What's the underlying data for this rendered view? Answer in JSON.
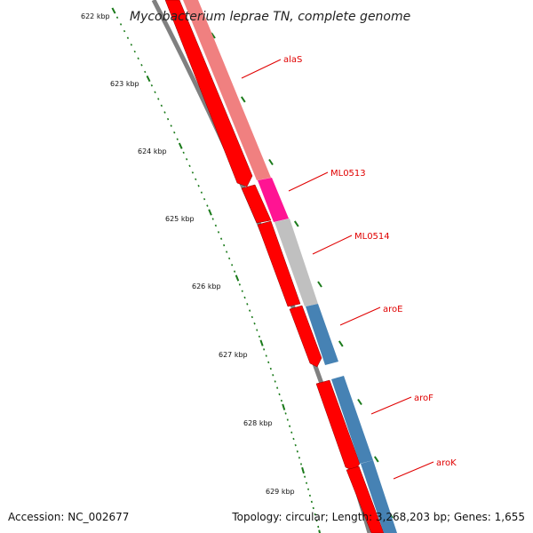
{
  "title": "Mycobacterium leprae TN, complete genome",
  "accession_text": "Accession: NC_002677",
  "summary_text": "Topology: circular; Length: 3,268,203 bp; Genes: 1,655",
  "tick_labels": [
    "622 kbp",
    "623 kbp",
    "624 kbp",
    "625 kbp",
    "626 kbp",
    "627 kbp",
    "628 kbp",
    "629 kbp"
  ],
  "genes": [
    {
      "name": "alaS",
      "color": "#f08080",
      "kind": "gene-track"
    },
    {
      "name": "ML0513",
      "color": "#ff1493",
      "kind": "gene-track"
    },
    {
      "name": "ML0514",
      "color": "#c0c0c0",
      "kind": "gene-track"
    },
    {
      "name": "aroE",
      "color": "#4682b4",
      "kind": "gene-track"
    },
    {
      "name": "aroF",
      "color": "#4682b4",
      "kind": "gene-track"
    },
    {
      "name": "aroK",
      "color": "#4682b4",
      "kind": "gene-track"
    }
  ],
  "colors": {
    "cds": "#ff0000",
    "backbone": "#808080",
    "ticks": "#1a7a1a",
    "labels": "#e00000"
  }
}
